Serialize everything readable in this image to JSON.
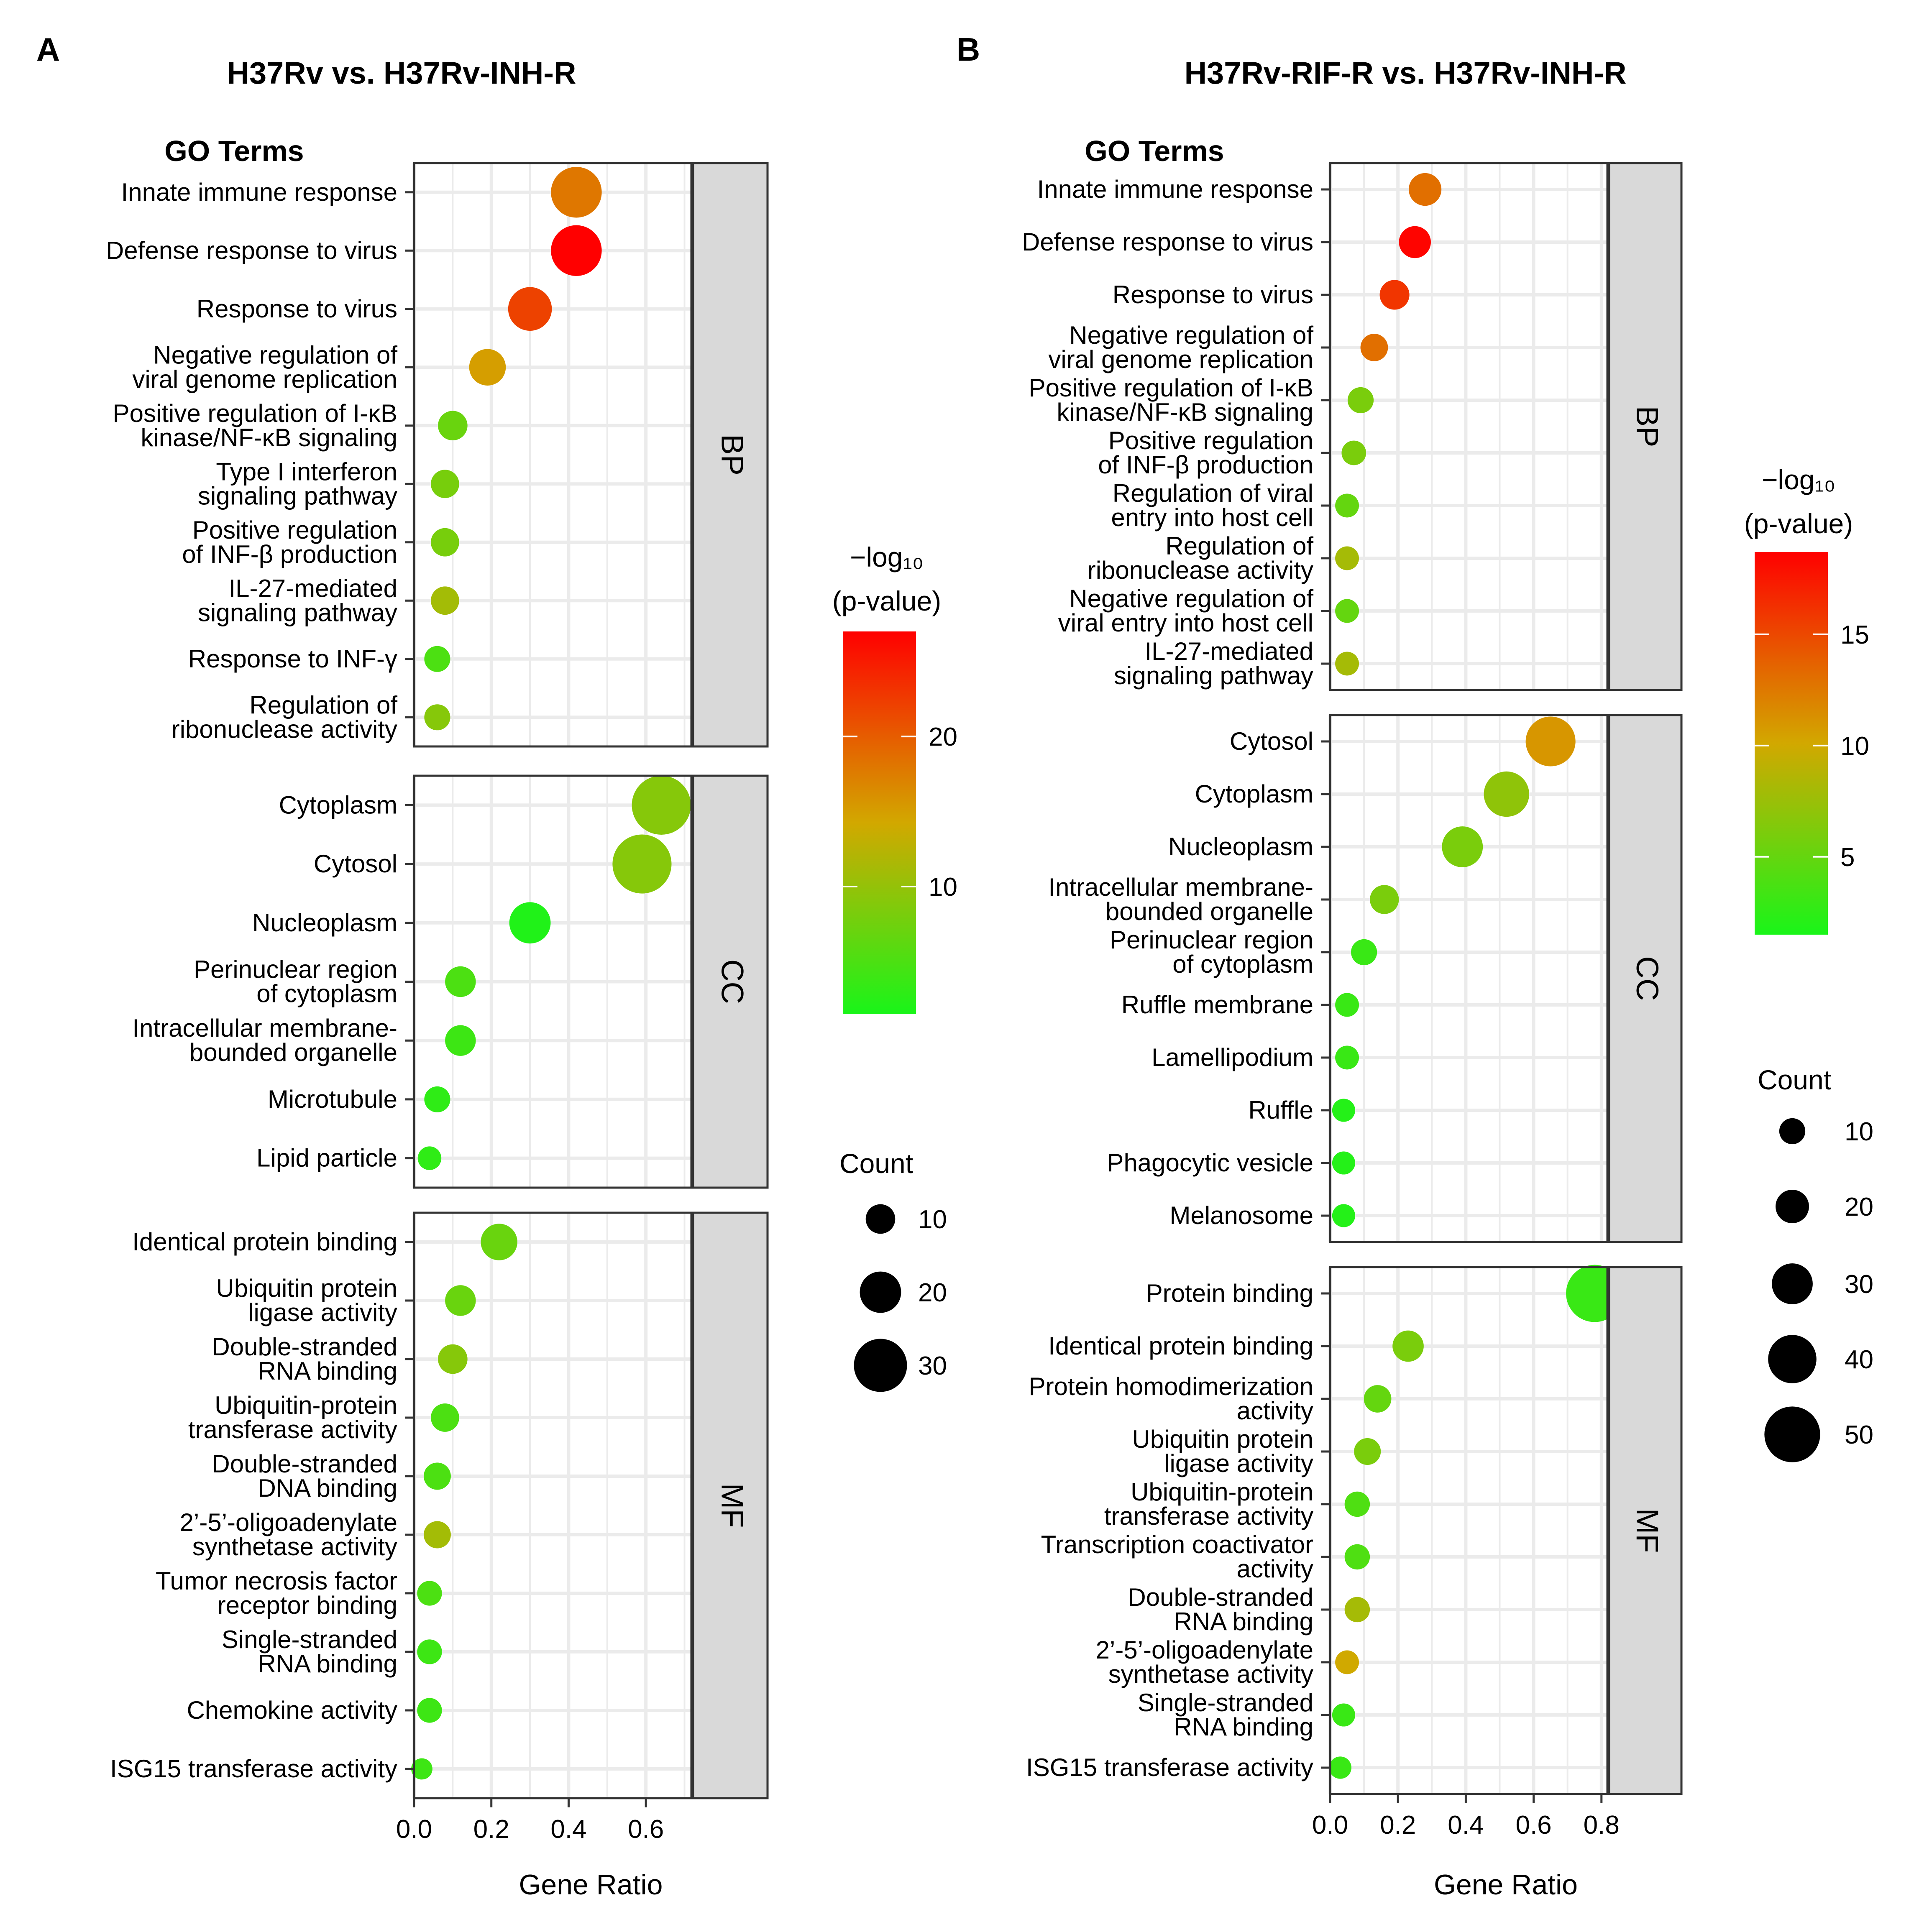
{
  "colors": {
    "low": "#19F519",
    "mid": "#D2A800",
    "high": "#FF0000",
    "strip_fill": "#D9D9D9",
    "grid": "#EBEBEB",
    "panel_border": "#333333"
  },
  "chart_data": [
    {
      "type": "scatter",
      "panel_letter": "A",
      "title": "H37Rv vs. H37Rv-INH-R",
      "y_header": "GO Terms",
      "xlabel": "Gene Ratio",
      "xlim": [
        0,
        0.72
      ],
      "xticks": [
        0.0,
        0.2,
        0.4,
        0.6
      ],
      "xtick_labels": [
        "0.0",
        "0.2",
        "0.4",
        "0.6"
      ],
      "color_legend": {
        "title_line1": "−log₁₀",
        "title_line2": "(p-value)",
        "range": [
          1.5,
          27
        ],
        "ticks": [
          10,
          20
        ]
      },
      "size_legend": {
        "title": "Count",
        "values": [
          10,
          20,
          30
        ]
      },
      "count_scale": [
        2,
        36
      ],
      "facets": [
        {
          "strip": "BP",
          "terms": [
            {
              "label": [
                "Innate immune response"
              ],
              "ratio": 0.42,
              "count": 28,
              "neglog10p": 18
            },
            {
              "label": [
                "Defense response to virus"
              ],
              "ratio": 0.42,
              "count": 28,
              "neglog10p": 27
            },
            {
              "label": [
                "Response to virus"
              ],
              "ratio": 0.3,
              "count": 22,
              "neglog10p": 22
            },
            {
              "label": [
                "Negative regulation of",
                "viral genome replication"
              ],
              "ratio": 0.19,
              "count": 16,
              "neglog10p": 15
            },
            {
              "label": [
                "Positive regulation of I-κB",
                "kinase/NF-κB signaling"
              ],
              "ratio": 0.1,
              "count": 10,
              "neglog10p": 7
            },
            {
              "label": [
                "Type I interferon",
                "signaling pathway"
              ],
              "ratio": 0.08,
              "count": 9,
              "neglog10p": 8
            },
            {
              "label": [
                "Positive regulation",
                "of INF-β production"
              ],
              "ratio": 0.08,
              "count": 9,
              "neglog10p": 8
            },
            {
              "label": [
                "IL-27-mediated",
                "signaling pathway"
              ],
              "ratio": 0.08,
              "count": 9,
              "neglog10p": 11
            },
            {
              "label": [
                "Response to INF-γ"
              ],
              "ratio": 0.06,
              "count": 7,
              "neglog10p": 5
            },
            {
              "label": [
                "Regulation of",
                "ribonuclease activity"
              ],
              "ratio": 0.06,
              "count": 7,
              "neglog10p": 9
            }
          ]
        },
        {
          "strip": "CC",
          "terms": [
            {
              "label": [
                "Cytoplasm"
              ],
              "ratio": 0.64,
              "count": 35,
              "neglog10p": 9
            },
            {
              "label": [
                "Cytosol"
              ],
              "ratio": 0.59,
              "count": 35,
              "neglog10p": 9
            },
            {
              "label": [
                "Nucleoplasm"
              ],
              "ratio": 0.3,
              "count": 20,
              "neglog10p": 2
            },
            {
              "label": [
                "Perinuclear region",
                "of cytoplasm"
              ],
              "ratio": 0.12,
              "count": 11,
              "neglog10p": 5
            },
            {
              "label": [
                "Intracellular membrane-",
                "bounded organelle"
              ],
              "ratio": 0.12,
              "count": 11,
              "neglog10p": 4
            },
            {
              "label": [
                "Microtubule"
              ],
              "ratio": 0.06,
              "count": 7,
              "neglog10p": 3
            },
            {
              "label": [
                "Lipid particle"
              ],
              "ratio": 0.04,
              "count": 5,
              "neglog10p": 3
            }
          ]
        },
        {
          "strip": "MF",
          "terms": [
            {
              "label": [
                "Identical protein binding"
              ],
              "ratio": 0.22,
              "count": 16,
              "neglog10p": 7
            },
            {
              "label": [
                "Ubiquitin protein",
                "ligase activity"
              ],
              "ratio": 0.12,
              "count": 11,
              "neglog10p": 7
            },
            {
              "label": [
                "Double-stranded",
                "RNA binding"
              ],
              "ratio": 0.1,
              "count": 10,
              "neglog10p": 9
            },
            {
              "label": [
                "Ubiquitin-protein",
                "transferase activity"
              ],
              "ratio": 0.08,
              "count": 9,
              "neglog10p": 5
            },
            {
              "label": [
                "Double-stranded",
                "DNA binding"
              ],
              "ratio": 0.06,
              "count": 8,
              "neglog10p": 5
            },
            {
              "label": [
                "2’-5’-oligoadenylate",
                "synthetase activity"
              ],
              "ratio": 0.06,
              "count": 8,
              "neglog10p": 11
            },
            {
              "label": [
                "Tumor necrosis factor",
                "receptor binding"
              ],
              "ratio": 0.04,
              "count": 6,
              "neglog10p": 5
            },
            {
              "label": [
                "Single-stranded",
                "RNA binding"
              ],
              "ratio": 0.04,
              "count": 6,
              "neglog10p": 4
            },
            {
              "label": [
                "Chemokine activity"
              ],
              "ratio": 0.04,
              "count": 6,
              "neglog10p": 4
            },
            {
              "label": [
                "ISG15 transferase activity"
              ],
              "ratio": 0.02,
              "count": 3,
              "neglog10p": 4
            }
          ]
        }
      ]
    },
    {
      "type": "scatter",
      "panel_letter": "B",
      "title": "H37Rv-RIF-R vs. H37Rv-INH-R",
      "y_header": "GO Terms",
      "xlabel": "Gene Ratio",
      "xlim": [
        0,
        0.82
      ],
      "xticks": [
        0.0,
        0.2,
        0.4,
        0.6,
        0.8
      ],
      "xtick_labels": [
        "0.0",
        "0.2",
        "0.4",
        "0.6",
        "0.8"
      ],
      "color_legend": {
        "title_line1": "−log₁₀",
        "title_line2": "(p-value)",
        "range": [
          1.5,
          18.7
        ],
        "ticks": [
          5,
          10,
          15
        ]
      },
      "size_legend": {
        "title": "Count",
        "values": [
          10,
          20,
          30,
          40,
          50
        ]
      },
      "count_scale": [
        2,
        56
      ],
      "facets": [
        {
          "strip": "BP",
          "terms": [
            {
              "label": [
                "Innate immune response"
              ],
              "ratio": 0.28,
              "count": 19,
              "neglog10p": 13
            },
            {
              "label": [
                "Defense response to virus"
              ],
              "ratio": 0.25,
              "count": 18,
              "neglog10p": 18.5
            },
            {
              "label": [
                "Response to virus"
              ],
              "ratio": 0.19,
              "count": 15,
              "neglog10p": 16
            },
            {
              "label": [
                "Negative regulation of",
                "viral genome replication"
              ],
              "ratio": 0.13,
              "count": 12,
              "neglog10p": 13
            },
            {
              "label": [
                "Positive regulation of I-κB",
                "kinase/NF-κB signaling"
              ],
              "ratio": 0.09,
              "count": 10,
              "neglog10p": 6
            },
            {
              "label": [
                "Positive regulation",
                "of INF-β production"
              ],
              "ratio": 0.07,
              "count": 8,
              "neglog10p": 6
            },
            {
              "label": [
                "Regulation of viral",
                "entry into host cell"
              ],
              "ratio": 0.05,
              "count": 7,
              "neglog10p": 5
            },
            {
              "label": [
                "Regulation of",
                "ribonuclease activity"
              ],
              "ratio": 0.05,
              "count": 7,
              "neglog10p": 8
            },
            {
              "label": [
                "Negative regulation of",
                "viral entry into host cell"
              ],
              "ratio": 0.05,
              "count": 7,
              "neglog10p": 5
            },
            {
              "label": [
                "IL-27-mediated",
                "signaling pathway"
              ],
              "ratio": 0.05,
              "count": 7,
              "neglog10p": 8
            }
          ]
        },
        {
          "strip": "CC",
          "terms": [
            {
              "label": [
                "Cytosol"
              ],
              "ratio": 0.65,
              "count": 42,
              "neglog10p": 11
            },
            {
              "label": [
                "Cytoplasm"
              ],
              "ratio": 0.52,
              "count": 36,
              "neglog10p": 7
            },
            {
              "label": [
                "Nucleoplasm"
              ],
              "ratio": 0.39,
              "count": 30,
              "neglog10p": 6
            },
            {
              "label": [
                "Intracellular membrane-",
                "bounded organelle"
              ],
              "ratio": 0.16,
              "count": 14,
              "neglog10p": 6
            },
            {
              "label": [
                "Perinuclear region",
                "of cytoplasm"
              ],
              "ratio": 0.1,
              "count": 10,
              "neglog10p": 3
            },
            {
              "label": [
                "Ruffle membrane"
              ],
              "ratio": 0.05,
              "count": 7,
              "neglog10p": 3
            },
            {
              "label": [
                "Lamellipodium"
              ],
              "ratio": 0.05,
              "count": 7,
              "neglog10p": 3
            },
            {
              "label": [
                "Ruffle"
              ],
              "ratio": 0.04,
              "count": 6,
              "neglog10p": 2
            },
            {
              "label": [
                "Phagocytic vesicle"
              ],
              "ratio": 0.04,
              "count": 6,
              "neglog10p": 2
            },
            {
              "label": [
                "Melanosome"
              ],
              "ratio": 0.04,
              "count": 6,
              "neglog10p": 2
            }
          ]
        },
        {
          "strip": "MF",
          "terms": [
            {
              "label": [
                "Protein binding"
              ],
              "ratio": 0.78,
              "count": 52,
              "neglog10p": 3
            },
            {
              "label": [
                "Identical protein binding"
              ],
              "ratio": 0.23,
              "count": 17,
              "neglog10p": 6
            },
            {
              "label": [
                "Protein homodimerization",
                "activity"
              ],
              "ratio": 0.14,
              "count": 12,
              "neglog10p": 5
            },
            {
              "label": [
                "Ubiquitin protein",
                "ligase activity"
              ],
              "ratio": 0.11,
              "count": 11,
              "neglog10p": 6
            },
            {
              "label": [
                "Ubiquitin-protein",
                "transferase activity"
              ],
              "ratio": 0.08,
              "count": 9,
              "neglog10p": 4
            },
            {
              "label": [
                "Transcription coactivator",
                "activity"
              ],
              "ratio": 0.08,
              "count": 9,
              "neglog10p": 4
            },
            {
              "label": [
                "Double-stranded",
                "RNA binding"
              ],
              "ratio": 0.08,
              "count": 9,
              "neglog10p": 8
            },
            {
              "label": [
                "2’-5’-oligoadenylate",
                "synthetase activity"
              ],
              "ratio": 0.05,
              "count": 7,
              "neglog10p": 10
            },
            {
              "label": [
                "Single-stranded",
                "RNA binding"
              ],
              "ratio": 0.04,
              "count": 6,
              "neglog10p": 3
            },
            {
              "label": [
                "ISG15 transferase activity"
              ],
              "ratio": 0.03,
              "count": 5,
              "neglog10p": 3
            }
          ]
        }
      ]
    }
  ]
}
